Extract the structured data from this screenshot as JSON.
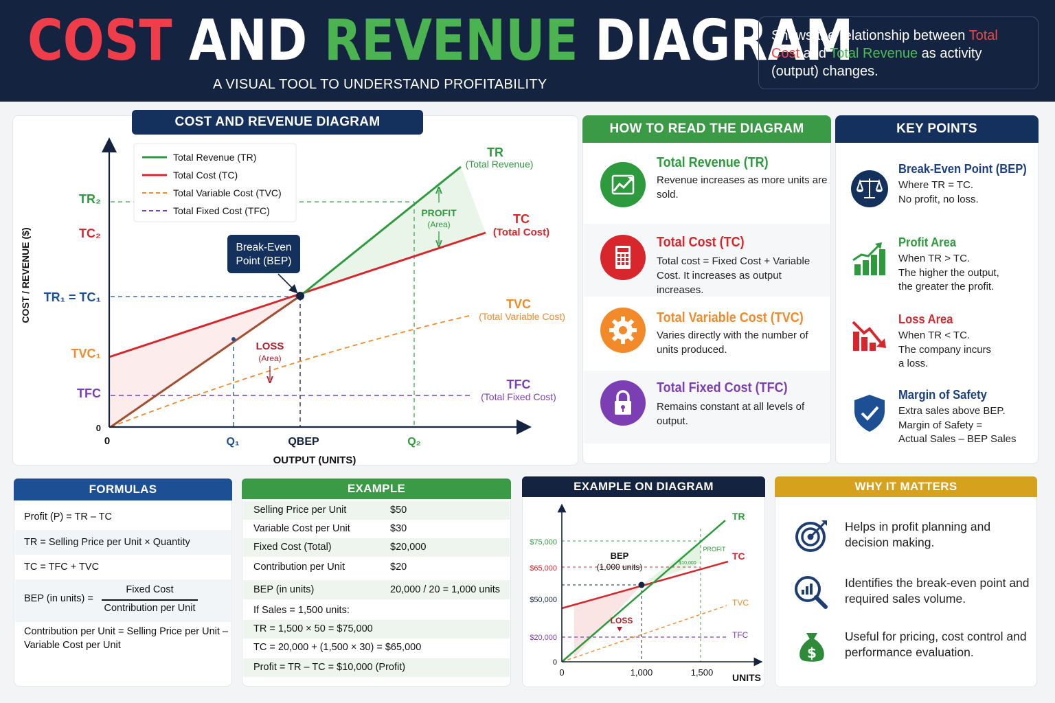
{
  "header": {
    "title_cost": "COST",
    "title_and": "AND",
    "title_revenue": "REVENUE",
    "title_diagram": "DIAGRAM",
    "subtitle": "A VISUAL TOOL TO UNDERSTAND PROFITABILITY",
    "note_part1": "Shows the relationship between ",
    "note_tc": "Total Cost",
    "note_part2": " and ",
    "note_tr": "Total Revenue",
    "note_part3": " as activity (output) changes."
  },
  "main_diagram": {
    "title": "COST AND REVENUE DIAGRAM",
    "y_axis_label": "COST / REVENUE ($)",
    "x_axis_label": "OUTPUT (UNITS)",
    "origin_x": "0",
    "origin_y": "0",
    "y_ticks": [
      "TR₂",
      "TC₂",
      "TR₁ = TC₁",
      "TVC₁",
      "TFC"
    ],
    "x_ticks": [
      "Q₁",
      "QBEP",
      "Q₂"
    ],
    "legend": [
      {
        "label": "Total Revenue (TR)",
        "color": "#2e9a3e",
        "dashed": false
      },
      {
        "label": "Total Cost (TC)",
        "color": "#d8262d",
        "dashed": false
      },
      {
        "label": "Total Variable Cost (TVC)",
        "color": "#f28a2a",
        "dashed": true
      },
      {
        "label": "Total Fixed Cost (TFC)",
        "color": "#7b3fb3",
        "dashed": true
      }
    ],
    "line_labels": {
      "tr": "TR",
      "tr_sub": "(Total Revenue)",
      "tc": "TC",
      "tc_sub": "(Total Cost)",
      "tvc": "TVC",
      "tvc_sub": "(Total Variable Cost)",
      "tfc": "TFC",
      "tfc_sub": "(Total Fixed Cost)"
    },
    "bep_callout": [
      "Break-Even",
      "Point (BEP)"
    ],
    "profit_label": "PROFIT",
    "profit_sub": "(Area)",
    "loss_label": "LOSS",
    "loss_sub": "(Area)"
  },
  "chart_data": [
    {
      "type": "line",
      "x_axis_label": "OUTPUT (UNITS)",
      "y_axis_label": "COST / REVENUE ($)",
      "x_categories": [
        "0",
        "Q₁",
        "QBEP",
        "Q₂"
      ],
      "y_categories": [
        "TFC",
        "TVC₁",
        "TR₁ = TC₁",
        "TC₂",
        "TR₂"
      ],
      "series": [
        {
          "name": "Total Revenue (TR)",
          "x": [
            0,
            1
          ],
          "y": [
            0,
            1
          ],
          "style": "solid"
        },
        {
          "name": "Total Cost (TC)",
          "x": [
            0,
            1
          ],
          "y": [
            0.33,
            1
          ],
          "style": "solid"
        },
        {
          "name": "Total Variable Cost (TVC)",
          "x": [
            0,
            1
          ],
          "y": [
            0,
            0.67
          ],
          "style": "dashed"
        },
        {
          "name": "Total Fixed Cost (TFC)",
          "x": [
            0,
            1
          ],
          "y": [
            0.33,
            0.33
          ],
          "style": "dashed"
        }
      ]
    },
    {
      "type": "line",
      "x_axis_label": "UNITS",
      "x_ticks": [
        0,
        1000,
        1500
      ],
      "y_ticks": [
        0,
        20000,
        50000,
        65000,
        75000
      ],
      "series": [
        {
          "name": "TR",
          "x": [
            0,
            1000,
            1500
          ],
          "y": [
            0,
            50000,
            75000
          ]
        },
        {
          "name": "TC",
          "x": [
            0,
            1000,
            1500
          ],
          "y": [
            20000,
            50000,
            65000
          ]
        },
        {
          "name": "TVC",
          "x": [
            0,
            1000,
            1500
          ],
          "y": [
            0,
            30000,
            45000
          ]
        },
        {
          "name": "TFC",
          "x": [
            0,
            1500
          ],
          "y": [
            20000,
            20000
          ]
        }
      ]
    }
  ],
  "how_to": {
    "title": "HOW TO READ THE DIAGRAM",
    "items": [
      {
        "heading": "Total Revenue (TR)",
        "body": "Revenue increases as more units are sold.",
        "color": "#2e9a3e",
        "icon": "trend-up-icon"
      },
      {
        "heading": "Total Cost (TC)",
        "body": "Total cost = Fixed Cost + Variable Cost. It increases as output increases.",
        "color": "#d8262d",
        "icon": "calculator-icon"
      },
      {
        "heading": "Total Variable Cost (TVC)",
        "body": "Varies directly with the number of units produced.",
        "color": "#f28a2a",
        "icon": "gear-icon"
      },
      {
        "heading": "Total Fixed Cost (TFC)",
        "body": "Remains constant at all levels of output.",
        "color": "#7b3fb3",
        "icon": "lock-icon"
      }
    ]
  },
  "key_points": {
    "title": "KEY POINTS",
    "items": [
      {
        "heading": "Break-Even Point (BEP)",
        "body": [
          "Where TR = TC.",
          "No profit, no loss."
        ],
        "icon": "scale-icon"
      },
      {
        "heading": "Profit Area",
        "body": [
          "When TR > TC.",
          "The higher the output,",
          "the greater the profit."
        ],
        "icon": "growth-chart-icon"
      },
      {
        "heading": "Loss Area",
        "body": [
          "When TR < TC.",
          "The company incurs",
          "a loss."
        ],
        "icon": "decline-chart-icon"
      },
      {
        "heading": "Margin of Safety",
        "body": [
          "Extra sales above BEP.",
          "Margin of Safety =",
          "Actual Sales – BEP Sales"
        ],
        "icon": "shield-check-icon"
      }
    ]
  },
  "formulas": {
    "title": "FORMULAS",
    "profit": "Profit (P)  =  TR – TC",
    "tr": "TR  =  Selling Price per Unit  ×  Quantity",
    "tc": "TC  =  TFC + TVC",
    "bep_lhs": "BEP (in units)  =",
    "bep_num": "Fixed Cost",
    "bep_den": "Contribution per Unit",
    "contribution": "Contribution per Unit = Selling Price per Unit – Variable Cost per Unit"
  },
  "example": {
    "title": "EXAMPLE",
    "rows": [
      {
        "label": "Selling Price per Unit",
        "value": "$50"
      },
      {
        "label": "Variable Cost per Unit",
        "value": "$30"
      },
      {
        "label": "Fixed Cost (Total)",
        "value": "$20,000"
      },
      {
        "label": "Contribution per Unit",
        "value": "$20"
      },
      {
        "label": "BEP (in units)",
        "value": "20,000 / 20  =  1,000 units"
      }
    ],
    "calc": [
      "If Sales = 1,500 units:",
      "TR  =  1,500  ×  50  =  $75,000",
      "TC  =  20,000  +  (1,500  ×  30)  =  $65,000",
      "Profit  =  TR – TC  =  $10,000 (Profit)"
    ]
  },
  "example_diagram": {
    "title": "EXAMPLE ON DIAGRAM",
    "y_ticks": [
      "$75,000",
      "$65,000",
      "$50,000",
      "$20,000",
      "0"
    ],
    "x_ticks": [
      "0",
      "1,000",
      "1,500"
    ],
    "x_label": "UNITS",
    "bep": "BEP",
    "bep_sub": "(1,000 units)",
    "profit": "PROFIT",
    "loss": "LOSS",
    "tr": "TR",
    "tc": "TC",
    "tvc": "TVC",
    "tfc": "TFC",
    "profit_amount": "$10,000"
  },
  "why": {
    "title": "WHY IT MATTERS",
    "items": [
      {
        "text": "Helps in profit planning and decision making.",
        "icon": "target-icon"
      },
      {
        "text": "Identifies the break-even point and required sales volume.",
        "icon": "analytics-search-icon"
      },
      {
        "text": "Useful for pricing, cost control and performance evaluation.",
        "icon": "money-bag-icon"
      }
    ]
  }
}
